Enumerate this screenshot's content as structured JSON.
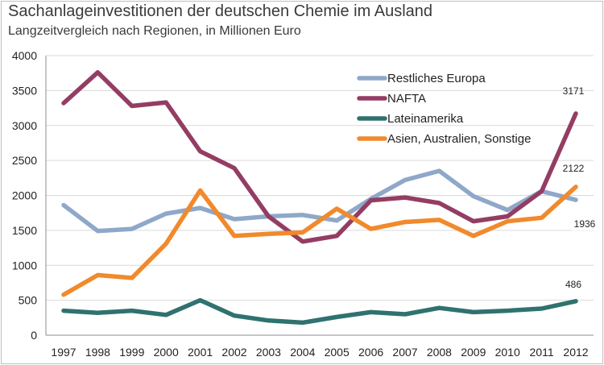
{
  "chart_data": {
    "type": "line",
    "title": "Sachanlageinvestitionen der deutschen Chemie im Ausland",
    "subtitle": "Langzeitvergleich nach Regionen, in Millionen Euro",
    "x": [
      "1997",
      "1998",
      "1999",
      "2000",
      "2001",
      "2002",
      "2003",
      "2004",
      "2005",
      "2006",
      "2007",
      "2008",
      "2009",
      "2010",
      "2011",
      "2012"
    ],
    "ylim": [
      0,
      4000
    ],
    "yticks": [
      0,
      500,
      1000,
      1500,
      2000,
      2500,
      3000,
      3500,
      4000
    ],
    "grid": "horizontal",
    "legend": "top-right",
    "series": [
      {
        "name": "Restliches Europa",
        "color": "#8fa8c9",
        "values": [
          1860,
          1490,
          1520,
          1740,
          1820,
          1660,
          1700,
          1720,
          1640,
          1950,
          2220,
          2350,
          1990,
          1790,
          2060,
          1936
        ],
        "end_label": "1936"
      },
      {
        "name": "NAFTA",
        "color": "#943d63",
        "values": [
          3320,
          3760,
          3280,
          3330,
          2630,
          2390,
          1700,
          1340,
          1420,
          1930,
          1970,
          1890,
          1630,
          1700,
          2060,
          3171
        ],
        "end_label": "3171"
      },
      {
        "name": "Lateinamerika",
        "color": "#2f7270",
        "values": [
          350,
          320,
          350,
          290,
          500,
          280,
          210,
          180,
          260,
          330,
          300,
          390,
          330,
          350,
          380,
          486
        ],
        "end_label": "486"
      },
      {
        "name": "Asien, Australien, Sonstige",
        "color": "#f08a2c",
        "values": [
          580,
          860,
          820,
          1310,
          2070,
          1420,
          1450,
          1470,
          1810,
          1520,
          1620,
          1650,
          1420,
          1630,
          1680,
          2122
        ],
        "end_label": "2122"
      }
    ]
  }
}
